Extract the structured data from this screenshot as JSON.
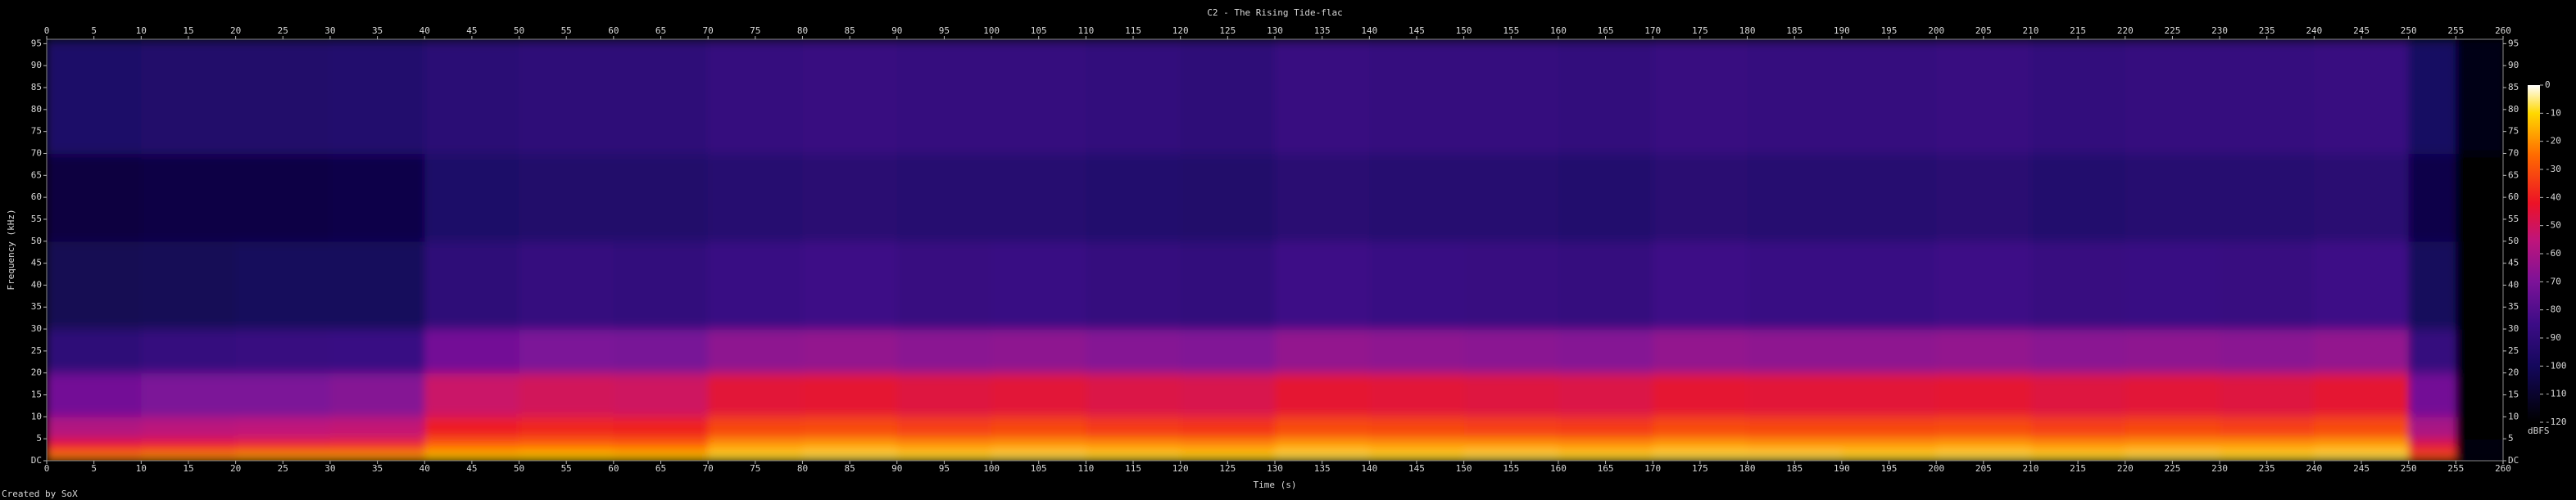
{
  "chart_data": {
    "type": "heatmap",
    "title": "C2 - The Rising Tide-flac",
    "x_label": "Time (s)",
    "y_label": "Frequency (kHz)",
    "footer": "Created by SoX",
    "colorbar_label": "dBFS",
    "xlim": [
      0,
      260
    ],
    "xticks": [
      0,
      5,
      10,
      15,
      20,
      25,
      30,
      35,
      40,
      45,
      50,
      55,
      60,
      65,
      70,
      75,
      80,
      85,
      90,
      95,
      100,
      105,
      110,
      115,
      120,
      125,
      130,
      135,
      140,
      145,
      150,
      155,
      160,
      165,
      170,
      175,
      180,
      185,
      190,
      195,
      200,
      205,
      210,
      215,
      220,
      225,
      230,
      235,
      240,
      245,
      250,
      255,
      260
    ],
    "ylim": [
      0,
      96
    ],
    "yticks": [
      {
        "value": 0,
        "label": "DC"
      },
      5,
      10,
      15,
      20,
      25,
      30,
      35,
      40,
      45,
      50,
      55,
      60,
      65,
      70,
      75,
      80,
      85,
      90,
      95
    ],
    "clim": [
      -120,
      0
    ],
    "cticks": [
      0,
      -10,
      -20,
      -30,
      -40,
      -50,
      -60,
      -70,
      -80,
      -90,
      -100,
      -110,
      -120
    ],
    "colormap": [
      {
        "value": -120,
        "color": "#000000"
      },
      {
        "value": -100,
        "color": "#14085c"
      },
      {
        "value": -85,
        "color": "#3c0c86"
      },
      {
        "value": -70,
        "color": "#7c1298"
      },
      {
        "value": -55,
        "color": "#c0147a"
      },
      {
        "value": -42,
        "color": "#ec1226"
      },
      {
        "value": -25,
        "color": "#ff6a00"
      },
      {
        "value": -10,
        "color": "#ffd800"
      },
      {
        "value": 0,
        "color": "#ffffff"
      }
    ],
    "x_bins": [
      0,
      10,
      20,
      30,
      40,
      50,
      60,
      70,
      80,
      90,
      100,
      110,
      120,
      130,
      140,
      150,
      160,
      170,
      180,
      190,
      200,
      210,
      220,
      230,
      240,
      250,
      255,
      260
    ],
    "y_bins": [
      0,
      2,
      5,
      10,
      20,
      30,
      50,
      70,
      96
    ],
    "z": [
      [
        -22,
        -20,
        -18,
        -18,
        -12,
        -11,
        -12,
        -8,
        -7,
        -8,
        -7,
        -8,
        -9,
        -7,
        -8,
        -7,
        -8,
        -7,
        -7,
        -8,
        -7,
        -8,
        -7,
        -8,
        -7,
        -30,
        -115
      ],
      [
        -42,
        -40,
        -38,
        -37,
        -26,
        -25,
        -26,
        -18,
        -17,
        -19,
        -18,
        -19,
        -20,
        -17,
        -18,
        -18,
        -19,
        -17,
        -18,
        -18,
        -17,
        -19,
        -18,
        -18,
        -17,
        -45,
        -118
      ],
      [
        -58,
        -56,
        -55,
        -54,
        -40,
        -38,
        -39,
        -32,
        -31,
        -33,
        -32,
        -34,
        -35,
        -31,
        -32,
        -33,
        -34,
        -31,
        -32,
        -32,
        -31,
        -33,
        -32,
        -33,
        -31,
        -60,
        -120
      ],
      [
        -72,
        -70,
        -70,
        -68,
        -52,
        -50,
        -51,
        -45,
        -44,
        -46,
        -45,
        -47,
        -48,
        -44,
        -45,
        -46,
        -47,
        -44,
        -45,
        -45,
        -44,
        -46,
        -45,
        -46,
        -44,
        -72,
        -120
      ],
      [
        -90,
        -88,
        -87,
        -86,
        -72,
        -70,
        -71,
        -66,
        -65,
        -67,
        -66,
        -68,
        -69,
        -65,
        -66,
        -67,
        -68,
        -65,
        -66,
        -66,
        -65,
        -67,
        -66,
        -67,
        -65,
        -88,
        -120
      ],
      [
        -102,
        -101,
        -100,
        -100,
        -90,
        -88,
        -89,
        -86,
        -85,
        -87,
        -86,
        -88,
        -89,
        -85,
        -86,
        -87,
        -88,
        -85,
        -86,
        -86,
        -85,
        -87,
        -86,
        -87,
        -85,
        -100,
        -120
      ],
      [
        -106,
        -105,
        -105,
        -104,
        -96,
        -95,
        -95,
        -93,
        -92,
        -93,
        -93,
        -94,
        -95,
        -92,
        -93,
        -93,
        -94,
        -92,
        -93,
        -93,
        -92,
        -94,
        -93,
        -93,
        -92,
        -104,
        -120
      ],
      [
        -96,
        -95,
        -95,
        -94,
        -91,
        -90,
        -90,
        -88,
        -87,
        -88,
        -88,
        -89,
        -90,
        -87,
        -88,
        -88,
        -89,
        -87,
        -88,
        -88,
        -87,
        -89,
        -88,
        -88,
        -87,
        -98,
        -115
      ]
    ]
  }
}
